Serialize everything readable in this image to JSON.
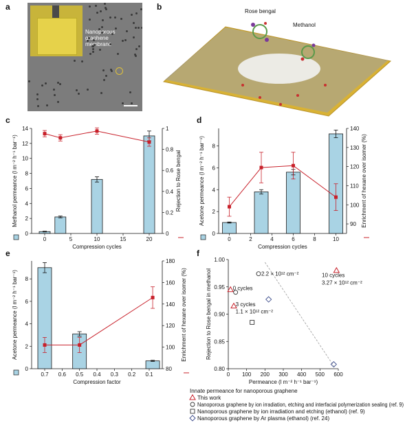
{
  "panel_labels": {
    "a": "a",
    "b": "b",
    "c": "c",
    "d": "d",
    "e": "e",
    "f": "f"
  },
  "panel_a": {
    "inset_label_line1": "Nanoporous",
    "inset_label_line2": "graphene",
    "inset_label_line3": "membrane"
  },
  "panel_b": {
    "label_rose": "Rose bengal",
    "label_methanol": "Methanol"
  },
  "colors": {
    "bar": "#a9d3e4",
    "bar_edge": "#1a1a1a",
    "line": "#c8202a",
    "diamond": "#3a4a8a",
    "triangle": "#c8202a"
  },
  "chart_data": [
    {
      "panel": "c",
      "type": "bar+line",
      "xlabel": "Compression cycles",
      "ylabel_left": "Methanol permeance (l m⁻² h⁻¹ bar⁻¹)",
      "ylabel_right": "Rejection to Rose bengal",
      "xlim": [
        -2.5,
        22.5
      ],
      "ylim_left": [
        0,
        14
      ],
      "ylim_right": [
        0,
        1.0
      ],
      "xticks": [
        0,
        5,
        10,
        15,
        20
      ],
      "yticks_left": [
        0,
        2,
        4,
        6,
        8,
        10,
        12,
        14
      ],
      "yticks_right": [
        0,
        0.2,
        0.4,
        0.6,
        0.8,
        1.0
      ],
      "bars": {
        "x": [
          0,
          3,
          10,
          20
        ],
        "values": [
          0.25,
          2.2,
          7.2,
          13.0
        ],
        "errors": [
          0.05,
          0.12,
          0.35,
          0.65
        ]
      },
      "line": {
        "x": [
          0,
          3,
          10,
          20
        ],
        "values": [
          0.95,
          0.91,
          0.975,
          0.87
        ],
        "errors": [
          0.03,
          0.03,
          0.03,
          0.04
        ]
      }
    },
    {
      "panel": "d",
      "type": "bar+line",
      "xlabel": "Compression cycles",
      "ylabel_left": "Acetone permeance (l m⁻² h⁻¹ bar⁻¹)",
      "ylabel_right": "Enrichment of hexane over isomer (%)",
      "xlim": [
        -1.0,
        11.0
      ],
      "ylim_left": [
        0,
        9.6
      ],
      "ylim_right": [
        85,
        140
      ],
      "xticks": [
        0,
        2,
        4,
        6,
        8,
        10
      ],
      "yticks_left": [
        0,
        2,
        4,
        6,
        8
      ],
      "yticks_right": [
        90,
        100,
        110,
        120,
        130,
        140
      ],
      "bars": {
        "x": [
          0,
          3,
          6,
          10
        ],
        "values": [
          1.0,
          3.8,
          5.6,
          9.1
        ],
        "errors": [
          0.05,
          0.2,
          0.25,
          0.35
        ]
      },
      "line": {
        "x": [
          0,
          3,
          6,
          10
        ],
        "values": [
          99,
          119.5,
          120.5,
          104
        ],
        "errors": [
          5,
          8,
          7,
          7
        ]
      }
    },
    {
      "panel": "e",
      "type": "bar+line",
      "xlabel": "Compression factor",
      "ylabel_left": "Acetone permeance (l m⁻² h⁻¹ bar⁻¹)",
      "ylabel_right": "Enrichment of hexane over isomer (%)",
      "xlim": [
        0.775,
        0.025
      ],
      "ylim_left": [
        0,
        9.6
      ],
      "ylim_right": [
        80,
        180
      ],
      "xticks": [
        0.7,
        0.6,
        0.5,
        0.4,
        0.3,
        0.2,
        0.1
      ],
      "yticks_left": [
        0,
        2,
        4,
        6,
        8
      ],
      "yticks_right": [
        80,
        100,
        120,
        140,
        160,
        180
      ],
      "bars": {
        "x": [
          0.7,
          0.5,
          0.08
        ],
        "values": [
          9.0,
          3.1,
          0.7
        ],
        "errors": [
          0.45,
          0.2,
          0.05
        ]
      },
      "line": {
        "x": [
          0.7,
          0.5,
          0.08
        ],
        "values": [
          102,
          102,
          146
        ],
        "errors": [
          7,
          7,
          10
        ]
      }
    },
    {
      "panel": "f",
      "type": "scatter",
      "xlabel": "Permeance (l m⁻² h⁻¹ bar⁻¹)",
      "ylabel": "Rejection to Rose bengal in methanol",
      "xlim": [
        0,
        600
      ],
      "ylim": [
        0.8,
        1.0
      ],
      "xticks": [
        0,
        100,
        200,
        300,
        400,
        500,
        600
      ],
      "yticks": [
        0.8,
        0.85,
        0.9,
        0.95,
        1.0
      ],
      "trend_line": {
        "x": [
          200,
          585
        ],
        "y": [
          0.995,
          0.8
        ]
      },
      "series": [
        {
          "name": "This work",
          "marker": "triangle",
          "points": [
            [
              12,
              0.945
            ],
            [
              30,
              0.915
            ],
            [
              590,
              0.98
            ]
          ]
        },
        {
          "name": "Nanoporous graphene by ion irradiation, etching and interfacial polymerization sealing (ref. 9)",
          "marker": "circle",
          "points": [
            [
              165,
              0.974
            ],
            [
              40,
              0.94
            ]
          ]
        },
        {
          "name": "Nanoporous graphene by ion irradiation and etching (ethanol) (ref. 9)",
          "marker": "square",
          "points": [
            [
              130,
              0.885
            ]
          ]
        },
        {
          "name": "Nanoporous graphene by Ar plasma (ethanol) (ref. 24)",
          "marker": "diamond",
          "points": [
            [
              220,
              0.927
            ],
            [
              575,
              0.808
            ]
          ]
        }
      ],
      "annotations": [
        {
          "text": "2.2 × 10¹² cm⁻²",
          "at": [
            180,
            0.974
          ]
        },
        {
          "text": "0 cycles",
          "at": [
            25,
            0.948
          ]
        },
        {
          "text": "3 cycles",
          "at": [
            40,
            0.918
          ]
        },
        {
          "text": "1.1 × 10¹² cm⁻²",
          "at": [
            40,
            0.905
          ]
        },
        {
          "text": "10 cycles",
          "at": [
            510,
            0.972
          ]
        },
        {
          "text": "3.27 × 10¹² cm⁻²",
          "at": [
            510,
            0.958
          ]
        }
      ],
      "legend_title": "Innate permeance for nanoporous graphene",
      "legend_placement": "bottom"
    }
  ]
}
